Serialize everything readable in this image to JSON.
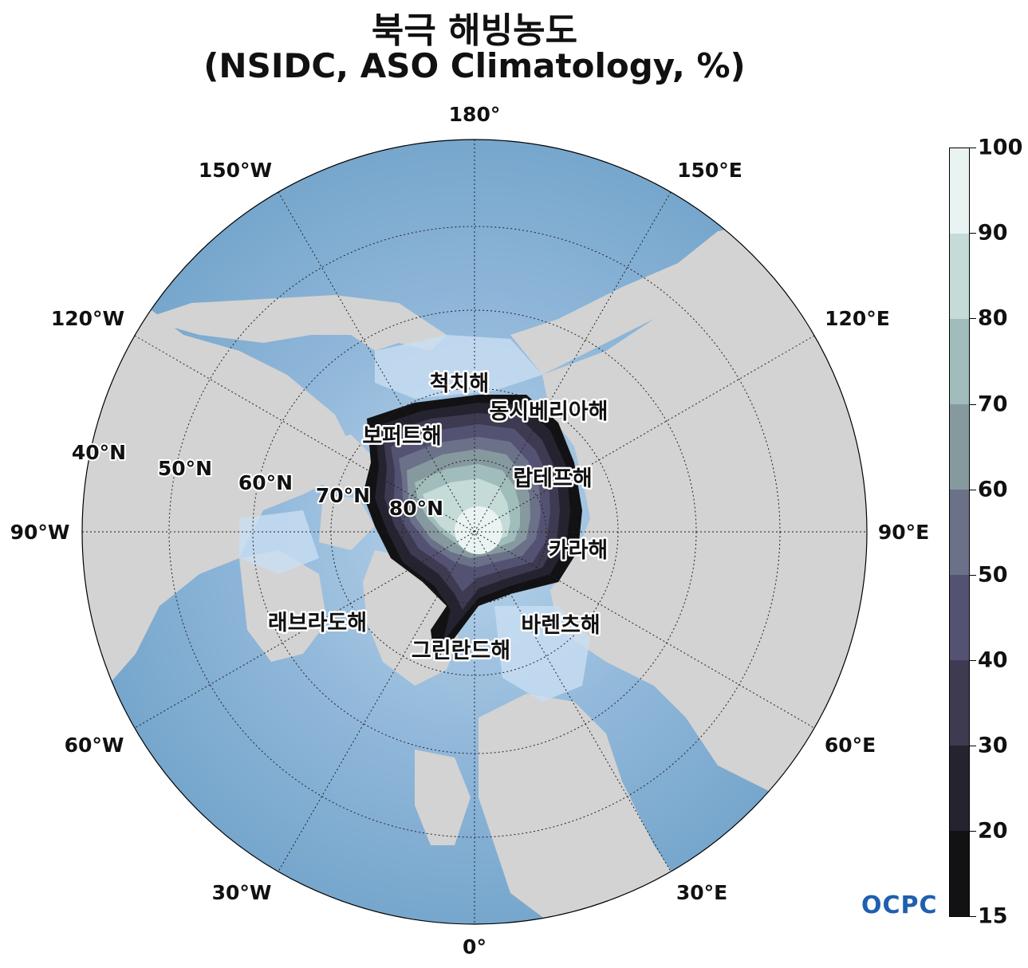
{
  "title": {
    "line1": "북극 해빙농도",
    "line2": "(NSIDC, ASO Climatology, %)"
  },
  "longitude_labels": {
    "lon_180": "180°",
    "lon_150W": "150°W",
    "lon_150E": "150°E",
    "lon_120W": "120°W",
    "lon_120E": "120°E",
    "lon_90W": "90°W",
    "lon_90E": "90°E",
    "lon_60W": "60°W",
    "lon_60E": "60°E",
    "lon_30W": "30°W",
    "lon_30E": "30°E",
    "lon_0": "0°"
  },
  "latitude_labels": {
    "lat_40": "40°N",
    "lat_50": "50°N",
    "lat_60": "60°N",
    "lat_70": "70°N",
    "lat_80": "80°N"
  },
  "sea_labels": {
    "chukchi": "척치해",
    "east_siberian": "동시베리아해",
    "beaufort": "보퍼트해",
    "laptev": "랍테프해",
    "kara": "카라해",
    "labrador": "래브라도해",
    "barents": "바렌츠해",
    "greenland": "그린란드해"
  },
  "colorbar": {
    "labels": [
      "100",
      "90",
      "80",
      "70",
      "60",
      "50",
      "40",
      "30",
      "20",
      "15"
    ],
    "colors": [
      "#e9f3f1",
      "#c4dbd7",
      "#a0bcbb",
      "#86999f",
      "#6b7189",
      "#545272",
      "#3d3a52",
      "#25232f",
      "#121214"
    ]
  },
  "logo": {
    "text": "OCPC"
  },
  "colors": {
    "land": "#d3d3d3",
    "ocean_deep": "#76a6cc",
    "ocean_shelf": "#c9dff2",
    "ice_edge": "#121214",
    "ice_core": "#e9f3f1"
  }
}
